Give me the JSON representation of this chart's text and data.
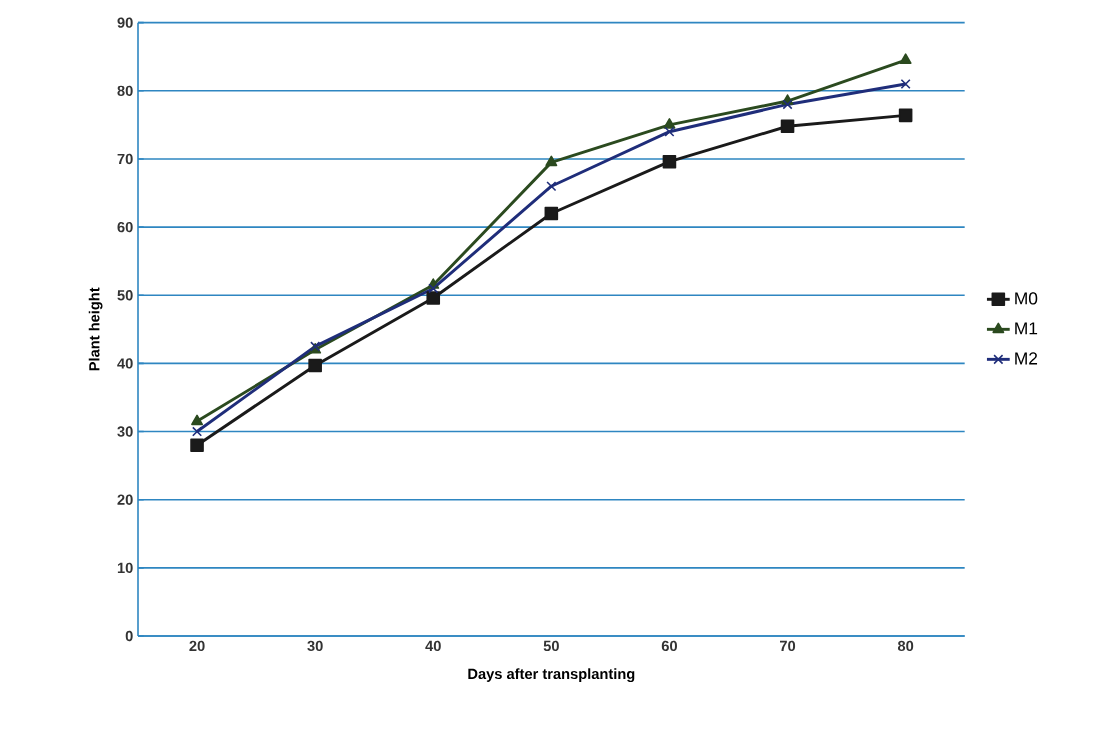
{
  "chart_data": {
    "type": "line",
    "xlabel": "Days after transplanting",
    "ylabel": "Plant height",
    "categories": [
      "20",
      "30",
      "40",
      "50",
      "60",
      "70",
      "80"
    ],
    "series": [
      {
        "name": "M0",
        "color": "#1a1a1a",
        "marker": "square",
        "values": [
          28,
          39.7,
          49.6,
          62,
          69.6,
          74.8,
          76.4
        ]
      },
      {
        "name": "M1",
        "color": "#2b4a1f",
        "marker": "triangle",
        "values": [
          31.5,
          42,
          51.5,
          69.5,
          75,
          78.5,
          84.5
        ]
      },
      {
        "name": "M2",
        "color": "#1f2d7a",
        "marker": "cross",
        "values": [
          30,
          42.5,
          51,
          66,
          74,
          78,
          81
        ]
      }
    ],
    "ylim": [
      0,
      90
    ],
    "yticks": [
      0,
      10,
      20,
      30,
      40,
      50,
      60,
      70,
      80,
      90
    ],
    "grid": "y",
    "legend": "right",
    "line_style": "solid"
  }
}
